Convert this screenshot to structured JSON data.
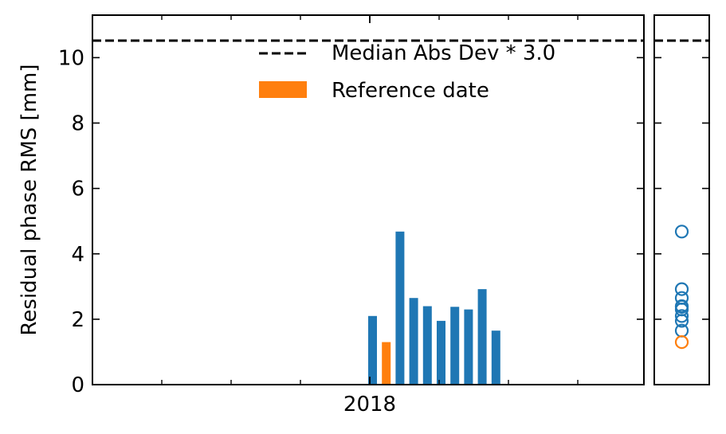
{
  "chart_data": [
    {
      "type": "bar",
      "ylabel": "Residual phase RMS [mm]",
      "ylim": [
        0,
        11.3
      ],
      "yticks": [
        0,
        2,
        4,
        6,
        8,
        10
      ],
      "xtick_labels": [
        "2018"
      ],
      "threshold": {
        "label": "Median Abs Dev * 3.0",
        "value": 10.52,
        "style": "dashed",
        "color": "#000000"
      },
      "legend": {
        "position": "top-right",
        "entries": [
          {
            "label": "Median Abs Dev * 3.0",
            "marker": "dashed-line",
            "color": "#000000"
          },
          {
            "label": "Reference date",
            "marker": "patch",
            "color": "#ff7f0e"
          }
        ]
      },
      "series": [
        {
          "values": [
            2.1,
            1.3,
            4.68,
            2.65,
            2.4,
            1.95,
            2.38,
            2.3,
            2.92,
            1.65
          ],
          "colors": [
            "#1f77b4",
            "#ff7f0e",
            "#1f77b4",
            "#1f77b4",
            "#1f77b4",
            "#1f77b4",
            "#1f77b4",
            "#1f77b4",
            "#1f77b4",
            "#1f77b4"
          ]
        }
      ]
    },
    {
      "type": "scatter",
      "ylim": [
        0,
        11.3
      ],
      "marker": "open-circle",
      "threshold_value": 10.52,
      "points": [
        {
          "y": 4.68,
          "color": "#1f77b4"
        },
        {
          "y": 2.92,
          "color": "#1f77b4"
        },
        {
          "y": 2.65,
          "color": "#1f77b4"
        },
        {
          "y": 2.4,
          "color": "#1f77b4"
        },
        {
          "y": 2.38,
          "color": "#1f77b4"
        },
        {
          "y": 2.3,
          "color": "#1f77b4"
        },
        {
          "y": 2.1,
          "color": "#1f77b4"
        },
        {
          "y": 1.95,
          "color": "#1f77b4"
        },
        {
          "y": 1.65,
          "color": "#1f77b4"
        },
        {
          "y": 1.3,
          "color": "#ff7f0e"
        }
      ]
    }
  ]
}
